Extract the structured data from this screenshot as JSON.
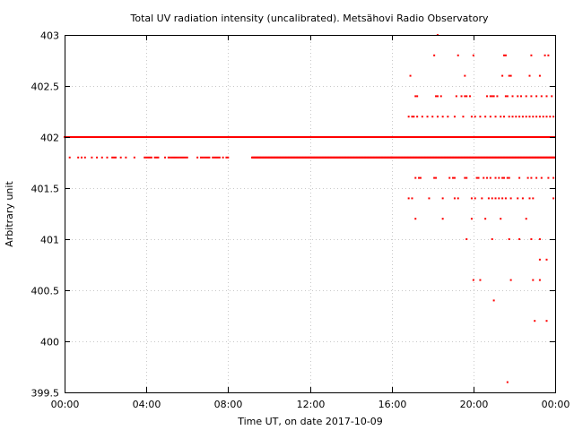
{
  "chart_data": {
    "type": "scatter",
    "title": "Total UV radiation intensity (uncalibrated). Metsähovi Radio Observatory",
    "xlabel": "Time UT, on date 2017-10-09",
    "ylabel": "Arbitrary unit",
    "xlim": [
      "00:00",
      "24:00"
    ],
    "ylim": [
      399.5,
      403
    ],
    "x_tick_labels": [
      "00:00",
      "04:00",
      "08:00",
      "12:00",
      "16:00",
      "20:00",
      "00:00"
    ],
    "y_tick_labels": [
      "399.5",
      "400",
      "400.5",
      "401",
      "401.5",
      "402",
      "402.5",
      "403"
    ],
    "grid": true,
    "marker_color": "#ff0000",
    "series": [
      {
        "points": {
          "402": [
            "00:00-24:00"
          ],
          "401.8": [
            "00:15",
            "00:40",
            "00:50",
            "01:00",
            "01:20",
            "01:35",
            "01:50",
            "02:05",
            "02:20",
            "02:25",
            "02:30",
            "02:45",
            "03:00",
            "03:25",
            "03:55",
            "04:00",
            "04:05",
            "04:10",
            "04:15",
            "04:25",
            "04:30",
            "04:35",
            "04:55",
            "05:05",
            "05:10",
            "05:15",
            "05:20",
            "05:25",
            "05:30",
            "05:35",
            "05:40",
            "05:45",
            "05:50",
            "05:55",
            "06:00",
            "06:30",
            "06:40",
            "06:45",
            "06:50",
            "06:55",
            "07:00",
            "07:05",
            "07:15",
            "07:20",
            "07:25",
            "07:30",
            "07:35",
            "07:45",
            "07:55",
            "08:00",
            "09:10-16:00",
            "16:00-24:00"
          ],
          "402.2": [
            "16:50",
            "17:00",
            "17:05",
            "17:15",
            "17:30",
            "17:45",
            "18:00",
            "18:15",
            "18:30",
            "18:45",
            "19:05",
            "19:30",
            "19:55",
            "20:05",
            "20:20",
            "20:35",
            "20:50",
            "21:05",
            "21:20",
            "21:30",
            "21:45",
            "21:55",
            "22:05",
            "22:15",
            "22:25",
            "22:35",
            "22:45",
            "22:55",
            "23:05",
            "23:15",
            "23:25",
            "23:35",
            "23:45",
            "23:55"
          ],
          "402.4": [
            "17:10",
            "17:15",
            "18:10",
            "18:15",
            "18:25",
            "19:10",
            "19:25",
            "19:35",
            "19:40",
            "19:50",
            "20:40",
            "20:50",
            "20:55",
            "21:00",
            "21:10",
            "21:35",
            "21:40",
            "21:55",
            "22:10",
            "22:20",
            "22:35",
            "22:50",
            "23:05",
            "23:20",
            "23:35",
            "23:50"
          ],
          "402.6": [
            "16:55",
            "19:35",
            "21:25",
            "21:45",
            "21:50",
            "22:45",
            "23:15"
          ],
          "402.8": [
            "18:05",
            "19:15",
            "20:00",
            "21:30",
            "21:35",
            "22:50",
            "23:30",
            "23:40"
          ],
          "403": [
            "18:15"
          ],
          "401.6": [
            "17:10",
            "17:20",
            "17:25",
            "18:05",
            "18:10",
            "18:50",
            "19:00",
            "19:05",
            "19:35",
            "19:40",
            "20:10",
            "20:15",
            "20:30",
            "20:40",
            "20:50",
            "21:05",
            "21:15",
            "21:25",
            "21:30",
            "21:40",
            "21:45",
            "22:15",
            "22:40",
            "22:50",
            "23:05",
            "23:20",
            "23:40",
            "23:55"
          ],
          "401.4": [
            "16:50",
            "17:00",
            "17:50",
            "18:30",
            "19:05",
            "19:15",
            "19:55",
            "20:05",
            "20:25",
            "20:45",
            "20:55",
            "21:05",
            "21:15",
            "21:25",
            "21:35",
            "21:50",
            "22:10",
            "22:25",
            "22:45",
            "22:55",
            "23:55"
          ],
          "401.2": [
            "17:10",
            "18:30",
            "19:55",
            "20:35",
            "21:20",
            "22:35"
          ],
          "401": [
            "19:40",
            "20:55",
            "21:45",
            "22:15",
            "22:50",
            "23:15"
          ],
          "400.8": [
            "23:15",
            "23:35"
          ],
          "400.6": [
            "20:00",
            "20:20",
            "21:50",
            "22:55",
            "23:15"
          ],
          "400.4": [
            "21:00"
          ],
          "400.2": [
            "23:00",
            "23:35"
          ],
          "399.6": [
            "21:40"
          ]
        }
      }
    ]
  }
}
